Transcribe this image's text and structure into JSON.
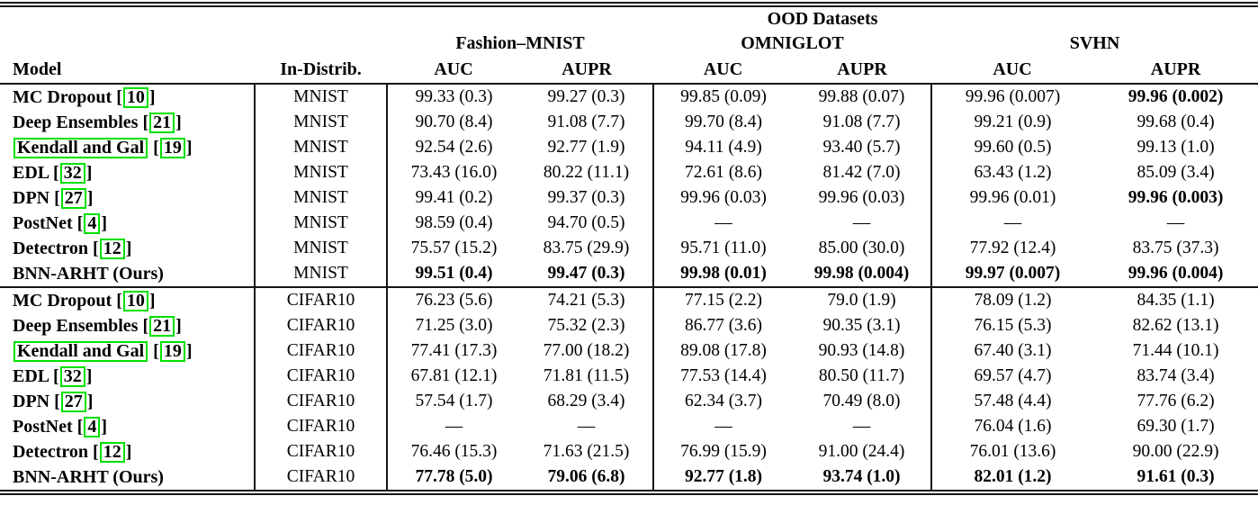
{
  "colors": {
    "citation_box": "#00e000",
    "rule": "#151515"
  },
  "header": {
    "ood": "OOD Datasets",
    "model": "Model",
    "in_distrib": "In-Distrib.",
    "groups": [
      {
        "label": "Fashion–MNIST",
        "sub": [
          "AUC",
          "AUPR"
        ]
      },
      {
        "label": "OMNIGLOT",
        "sub": [
          "AUC",
          "AUPR"
        ]
      },
      {
        "label": "SVHN",
        "sub": [
          "AUC",
          "AUPR"
        ]
      }
    ]
  },
  "rows": [
    {
      "model": "MC Dropout",
      "cite": "10",
      "boxed_name": false,
      "dist": "MNIST",
      "cells": [
        [
          "99.33 (0.3)",
          0
        ],
        [
          "99.27 (0.3)",
          0
        ],
        [
          "99.85 (0.09)",
          0
        ],
        [
          "99.88 (0.07)",
          0
        ],
        [
          "99.96 (0.007)",
          0
        ],
        [
          "99.96 (0.002)",
          1
        ]
      ]
    },
    {
      "model": "Deep Ensembles",
      "cite": "21",
      "boxed_name": false,
      "dist": "MNIST",
      "cells": [
        [
          "90.70 (8.4)",
          0
        ],
        [
          "91.08 (7.7)",
          0
        ],
        [
          "99.70 (8.4)",
          0
        ],
        [
          "91.08 (7.7)",
          0
        ],
        [
          "99.21 (0.9)",
          0
        ],
        [
          "99.68 (0.4)",
          0
        ]
      ]
    },
    {
      "model": "Kendall and Gal",
      "cite": "19",
      "boxed_name": true,
      "dist": "MNIST",
      "cells": [
        [
          "92.54 (2.6)",
          0
        ],
        [
          "92.77 (1.9)",
          0
        ],
        [
          "94.11 (4.9)",
          0
        ],
        [
          "93.40 (5.7)",
          0
        ],
        [
          "99.60 (0.5)",
          0
        ],
        [
          "99.13 (1.0)",
          0
        ]
      ]
    },
    {
      "model": "EDL",
      "cite": "32",
      "boxed_name": false,
      "dist": "MNIST",
      "cells": [
        [
          "73.43 (16.0)",
          0
        ],
        [
          "80.22 (11.1)",
          0
        ],
        [
          "72.61 (8.6)",
          0
        ],
        [
          "81.42 (7.0)",
          0
        ],
        [
          "63.43 (1.2)",
          0
        ],
        [
          "85.09 (3.4)",
          0
        ]
      ]
    },
    {
      "model": "DPN",
      "cite": "27",
      "boxed_name": false,
      "dist": "MNIST",
      "cells": [
        [
          "99.41 (0.2)",
          0
        ],
        [
          "99.37 (0.3)",
          0
        ],
        [
          "99.96 (0.03)",
          0
        ],
        [
          "99.96 (0.03)",
          0
        ],
        [
          "99.96 (0.01)",
          0
        ],
        [
          "99.96 (0.003)",
          1
        ]
      ]
    },
    {
      "model": "PostNet",
      "cite": "4",
      "boxed_name": false,
      "dist": "MNIST",
      "cells": [
        [
          "98.59 (0.4)",
          0
        ],
        [
          "94.70 (0.5)",
          0
        ],
        [
          "—",
          0
        ],
        [
          "—",
          0
        ],
        [
          "—",
          0
        ],
        [
          "—",
          0
        ]
      ]
    },
    {
      "model": "Detectron",
      "cite": "12",
      "boxed_name": false,
      "dist": "MNIST",
      "cells": [
        [
          "75.57 (15.2)",
          0
        ],
        [
          "83.75 (29.9)",
          0
        ],
        [
          "95.71 (11.0)",
          0
        ],
        [
          "85.00 (30.0)",
          0
        ],
        [
          "77.92 (12.4)",
          0
        ],
        [
          "83.75 (37.3)",
          0
        ]
      ]
    },
    {
      "model": "BNN-ARHT (Ours)",
      "cite": null,
      "boxed_name": false,
      "dist": "MNIST",
      "cells": [
        [
          "99.51 (0.4)",
          1
        ],
        [
          "99.47 (0.3)",
          1
        ],
        [
          "99.98 (0.01)",
          1
        ],
        [
          "99.98 (0.004)",
          1
        ],
        [
          "99.97 (0.007)",
          1
        ],
        [
          "99.96 (0.004)",
          1
        ]
      ]
    },
    {
      "model": "MC Dropout",
      "cite": "10",
      "boxed_name": false,
      "dist": "CIFAR10",
      "block_start": true,
      "cells": [
        [
          "76.23 (5.6)",
          0
        ],
        [
          "74.21 (5.3)",
          0
        ],
        [
          "77.15 (2.2)",
          0
        ],
        [
          "79.0 (1.9)",
          0
        ],
        [
          "78.09 (1.2)",
          0
        ],
        [
          "84.35 (1.1)",
          0
        ]
      ]
    },
    {
      "model": "Deep Ensembles",
      "cite": "21",
      "boxed_name": false,
      "dist": "CIFAR10",
      "cells": [
        [
          "71.25 (3.0)",
          0
        ],
        [
          "75.32 (2.3)",
          0
        ],
        [
          "86.77 (3.6)",
          0
        ],
        [
          "90.35 (3.1)",
          0
        ],
        [
          "76.15 (5.3)",
          0
        ],
        [
          "82.62 (13.1)",
          0
        ]
      ]
    },
    {
      "model": "Kendall and Gal",
      "cite": "19",
      "boxed_name": true,
      "dist": "CIFAR10",
      "cells": [
        [
          "77.41 (17.3)",
          0
        ],
        [
          "77.00 (18.2)",
          0
        ],
        [
          "89.08 (17.8)",
          0
        ],
        [
          "90.93 (14.8)",
          0
        ],
        [
          "67.40 (3.1)",
          0
        ],
        [
          "71.44 (10.1)",
          0
        ]
      ]
    },
    {
      "model": "EDL",
      "cite": "32",
      "boxed_name": false,
      "dist": "CIFAR10",
      "cells": [
        [
          "67.81 (12.1)",
          0
        ],
        [
          "71.81 (11.5)",
          0
        ],
        [
          "77.53 (14.4)",
          0
        ],
        [
          "80.50 (11.7)",
          0
        ],
        [
          "69.57 (4.7)",
          0
        ],
        [
          "83.74 (3.4)",
          0
        ]
      ]
    },
    {
      "model": "DPN",
      "cite": "27",
      "boxed_name": false,
      "dist": "CIFAR10",
      "cells": [
        [
          "57.54 (1.7)",
          0
        ],
        [
          "68.29 (3.4)",
          0
        ],
        [
          "62.34 (3.7)",
          0
        ],
        [
          "70.49 (8.0)",
          0
        ],
        [
          "57.48 (4.4)",
          0
        ],
        [
          "77.76 (6.2)",
          0
        ]
      ]
    },
    {
      "model": "PostNet",
      "cite": "4",
      "boxed_name": false,
      "dist": "CIFAR10",
      "cells": [
        [
          "—",
          0
        ],
        [
          "—",
          0
        ],
        [
          "—",
          0
        ],
        [
          "—",
          0
        ],
        [
          "76.04 (1.6)",
          0
        ],
        [
          "69.30 (1.7)",
          0
        ]
      ]
    },
    {
      "model": "Detectron",
      "cite": "12",
      "boxed_name": false,
      "dist": "CIFAR10",
      "cells": [
        [
          "76.46 (15.3)",
          0
        ],
        [
          "71.63 (21.5)",
          0
        ],
        [
          "76.99 (15.9)",
          0
        ],
        [
          "91.00 (24.4)",
          0
        ],
        [
          "76.01 (13.6)",
          0
        ],
        [
          "90.00 (22.9)",
          0
        ]
      ]
    },
    {
      "model": "BNN-ARHT (Ours)",
      "cite": null,
      "boxed_name": false,
      "dist": "CIFAR10",
      "cells": [
        [
          "77.78 (5.0)",
          1
        ],
        [
          "79.06 (6.8)",
          1
        ],
        [
          "92.77 (1.8)",
          1
        ],
        [
          "93.74 (1.0)",
          1
        ],
        [
          "82.01 (1.2)",
          1
        ],
        [
          "91.61 (0.3)",
          1
        ]
      ]
    }
  ]
}
